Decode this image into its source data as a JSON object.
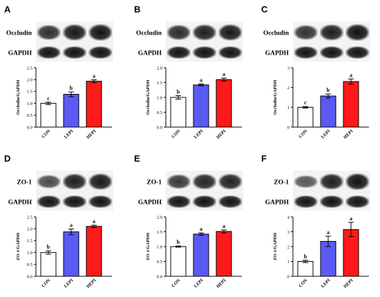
{
  "colors": {
    "CON": "#ffffff",
    "LEPI": "#5a5af5",
    "HEPI": "#ff1a1a",
    "blot_bg": "#f3f3f3",
    "band": "#111111"
  },
  "chart_data": [
    {
      "panel": "A",
      "type": "bar",
      "blots": [
        "Occludin",
        "GAPDH"
      ],
      "categories": [
        "CON",
        "LEPI",
        "HEPI"
      ],
      "values": [
        1.0,
        1.38,
        1.93
      ],
      "errors": [
        0.05,
        0.1,
        0.06
      ],
      "significance": [
        "c",
        "b",
        "a"
      ],
      "ylabel": "Occludin/GAPDH",
      "ylim": [
        0,
        2.5
      ],
      "yticks": [
        0,
        0.5,
        1,
        1.5,
        2,
        2.5
      ],
      "ytick_labels": [
        "0.0",
        "0.5",
        "1.0",
        "1.5",
        "2.0",
        "2.5"
      ],
      "band_intensity": [
        [
          0.78,
          0.95,
          1.0
        ],
        [
          1.0,
          1.0,
          1.0
        ]
      ]
    },
    {
      "panel": "B",
      "type": "bar",
      "blots": [
        "Occludin",
        "GAPDH"
      ],
      "categories": [
        "CON",
        "LEPI",
        "HEPI"
      ],
      "values": [
        1.0,
        1.42,
        1.6
      ],
      "errors": [
        0.06,
        0.03,
        0.05
      ],
      "significance": [
        "b",
        "a",
        "a"
      ],
      "ylabel": "Occludin/GAPDH",
      "ylim": [
        0,
        2.0
      ],
      "yticks": [
        0,
        0.5,
        1,
        1.5,
        2
      ],
      "ytick_labels": [
        "0.0",
        "0.5",
        "1.0",
        "1.5",
        "2.0"
      ],
      "band_intensity": [
        [
          0.8,
          0.9,
          0.95
        ],
        [
          1.0,
          1.0,
          1.0
        ]
      ]
    },
    {
      "panel": "C",
      "type": "bar",
      "blots": [
        "Occludin",
        "GAPDH"
      ],
      "categories": [
        "CON",
        "LEPI",
        "HEPI"
      ],
      "values": [
        1.0,
        1.57,
        2.3
      ],
      "errors": [
        0.04,
        0.1,
        0.13
      ],
      "significance": [
        "c",
        "b",
        "a"
      ],
      "ylabel": "Occludin/GAPDH",
      "ylim": [
        0,
        3
      ],
      "yticks": [
        0,
        1,
        2,
        3
      ],
      "ytick_labels": [
        "0",
        "1",
        "2",
        "3"
      ],
      "band_intensity": [
        [
          0.75,
          0.92,
          1.0
        ],
        [
          1.0,
          1.0,
          1.0
        ]
      ]
    },
    {
      "panel": "D",
      "type": "bar",
      "blots": [
        "ZO-1",
        "GAPDH"
      ],
      "categories": [
        "CON",
        "LEPI",
        "HEPI"
      ],
      "values": [
        1.0,
        1.87,
        2.1
      ],
      "errors": [
        0.07,
        0.12,
        0.05
      ],
      "significance": [
        "b",
        "a",
        "a"
      ],
      "ylabel": "ZO-1/GAPDH",
      "ylim": [
        0,
        2.5
      ],
      "yticks": [
        0,
        0.5,
        1,
        1.5,
        2,
        2.5
      ],
      "ytick_labels": [
        "0.0",
        "0.5",
        "1.0",
        "1.5",
        "2.0",
        "2.5"
      ],
      "band_intensity": [
        [
          0.55,
          0.9,
          0.95
        ],
        [
          1.0,
          1.0,
          1.0
        ]
      ]
    },
    {
      "panel": "E",
      "type": "bar",
      "blots": [
        "ZO-1",
        "GAPDH"
      ],
      "categories": [
        "CON",
        "LEPI",
        "HEPI"
      ],
      "values": [
        1.0,
        1.42,
        1.51
      ],
      "errors": [
        0.02,
        0.04,
        0.05
      ],
      "significance": [
        "b",
        "a",
        "a"
      ],
      "ylabel": "ZO-1/GAPDH",
      "ylim": [
        0,
        2.0
      ],
      "yticks": [
        0,
        0.5,
        1,
        1.5,
        2
      ],
      "ytick_labels": [
        "0.0",
        "0.5",
        "1.0",
        "1.5",
        "2.0"
      ],
      "band_intensity": [
        [
          0.7,
          0.85,
          0.88
        ],
        [
          1.0,
          1.0,
          1.0
        ]
      ]
    },
    {
      "panel": "F",
      "type": "bar",
      "blots": [
        "ZO-1",
        "GAPDH"
      ],
      "categories": [
        "CON",
        "LEPI",
        "HEPI"
      ],
      "values": [
        1.0,
        2.35,
        3.15
      ],
      "errors": [
        0.08,
        0.35,
        0.48
      ],
      "significance": [
        "b",
        "a",
        "a"
      ],
      "ylabel": "ZO-1/GAPDH",
      "ylim": [
        0,
        4
      ],
      "yticks": [
        0,
        1,
        2,
        3,
        4
      ],
      "ytick_labels": [
        "0",
        "1",
        "2",
        "3",
        "4"
      ],
      "band_intensity": [
        [
          0.45,
          0.9,
          1.0
        ],
        [
          1.0,
          1.0,
          1.0
        ]
      ]
    }
  ]
}
